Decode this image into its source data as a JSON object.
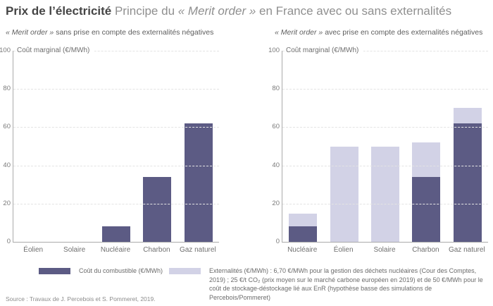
{
  "header": {
    "title_bold": "Prix de l’électricité",
    "title_mid": " Principe du ",
    "title_italic": "« Merit order »",
    "title_end": " en France avec ou sans externalités"
  },
  "colors": {
    "fuel_bar": "#5c5b84",
    "externality_bar": "#d2d2e6",
    "axis_line": "#ababab",
    "gridline": "#e3e3e3"
  },
  "chart_data": [
    {
      "type": "bar",
      "title_italic": "« Merit order »",
      "title_rest": " sans prise en compte des externalités négatives",
      "ylabel": "Coût marginal (€/MWh)",
      "ylim": [
        0,
        100
      ],
      "yticks": [
        0,
        20,
        40,
        60,
        80,
        100
      ],
      "grid": "horizontal-dashed",
      "categories": [
        "Éolien",
        "Solaire",
        "Nucléaire",
        "Charbon",
        "Gaz naturel"
      ],
      "series": [
        {
          "name": "Coût du combustible (€/MWh)",
          "color": "#5c5b84",
          "values": [
            0,
            0,
            8,
            34,
            62
          ]
        }
      ]
    },
    {
      "type": "stacked-bar",
      "title_italic": "« Merit order »",
      "title_rest": " avec prise en compte des externalités négatives",
      "ylabel": "Coût marginal (€/MWh)",
      "ylim": [
        0,
        100
      ],
      "yticks": [
        0,
        20,
        40,
        60,
        80,
        100
      ],
      "grid": "horizontal-dashed",
      "categories": [
        "Nucléaire",
        "Éolien",
        "Solaire",
        "Charbon",
        "Gaz naturel"
      ],
      "series": [
        {
          "name": "Coût du combustible (€/MWh)",
          "color": "#5c5b84",
          "values": [
            8,
            0,
            0,
            34,
            62
          ]
        },
        {
          "name": "Externalités (€/MWh)",
          "color": "#d2d2e6",
          "values": [
            6.7,
            50,
            50,
            18,
            8
          ]
        }
      ],
      "totals": [
        14.7,
        50,
        50,
        52,
        70
      ]
    }
  ],
  "legend": {
    "items": [
      {
        "label": "Coût du combustible (€/MWh)",
        "color": "#5c5b84"
      },
      {
        "label": "Externalités (€/MWh) : 6,70 €/MWh pour la gestion des déchets nucléaires (Cour des Comptes, 2019) ; 25 €/t CO₂ (prix moyen sur le marché carbone européen en 2019) et de 50 €/MWh pour le coût de stockage-déstockage lié aux EnR (hypothèse basse des simulations de Percebois/Pommeret)",
        "color": "#d2d2e6"
      }
    ]
  },
  "source": "Source : Travaux de J. Percebois et S. Pommeret, 2019."
}
